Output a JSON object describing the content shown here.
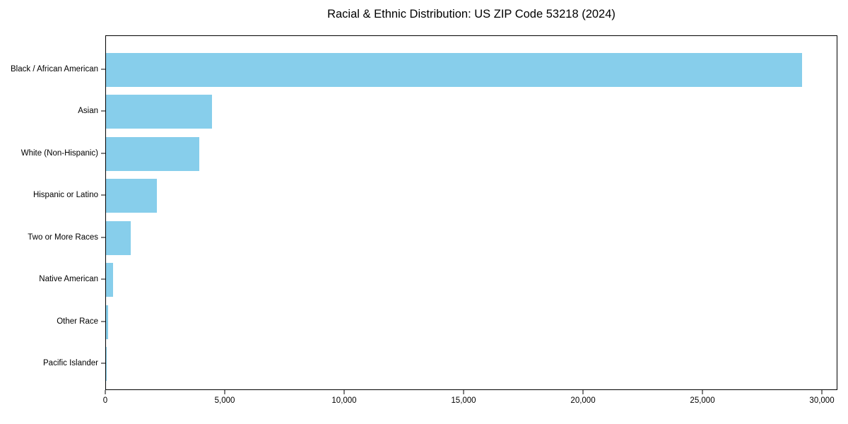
{
  "chart_data": {
    "type": "bar",
    "orientation": "horizontal",
    "title": "Racial & Ethnic Distribution: US ZIP Code 53218 (2024)",
    "categories": [
      "Black / African American",
      "Asian",
      "White (Non-Hispanic)",
      "Hispanic or Latino",
      "Two or More Races",
      "Native American",
      "Other Race",
      "Pacific Islander"
    ],
    "values": [
      29200,
      4450,
      3900,
      2130,
      1040,
      300,
      100,
      20
    ],
    "xlabel": "",
    "ylabel": "",
    "xlim": [
      0,
      30650
    ],
    "x_ticks": [
      0,
      5000,
      10000,
      15000,
      20000,
      25000,
      30000
    ],
    "x_tick_labels": [
      "0",
      "5,000",
      "10,000",
      "15,000",
      "20,000",
      "25,000",
      "30,000"
    ],
    "bar_color": "#87CEEB",
    "grid": false,
    "legend_position": "none"
  }
}
